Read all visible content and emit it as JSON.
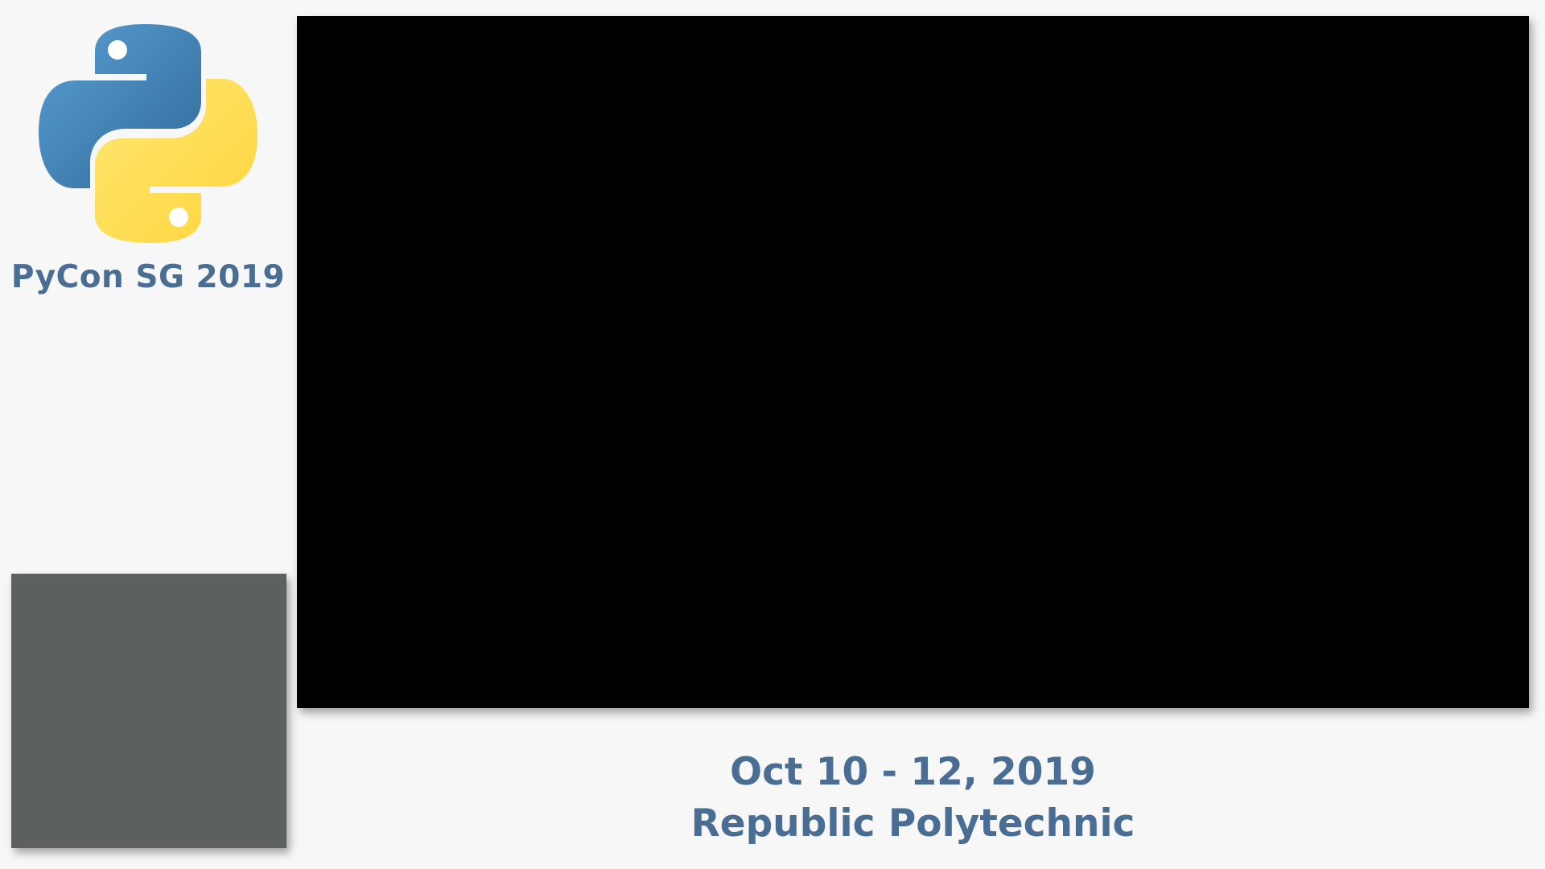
{
  "branding": {
    "logo_icon": "python-logo-icon",
    "conference_name": "PyCon SG 2019",
    "colors": {
      "text": "#4a6d93",
      "python_blue": "#3d6ea8",
      "python_yellow": "#fdd84a",
      "background": "#f7f7f7"
    }
  },
  "main_video": {
    "color": "#000000"
  },
  "camera_feed": {
    "color": "#5c605e"
  },
  "event": {
    "dates": "Oct 10 - 12, 2019",
    "venue": "Republic Polytechnic"
  }
}
